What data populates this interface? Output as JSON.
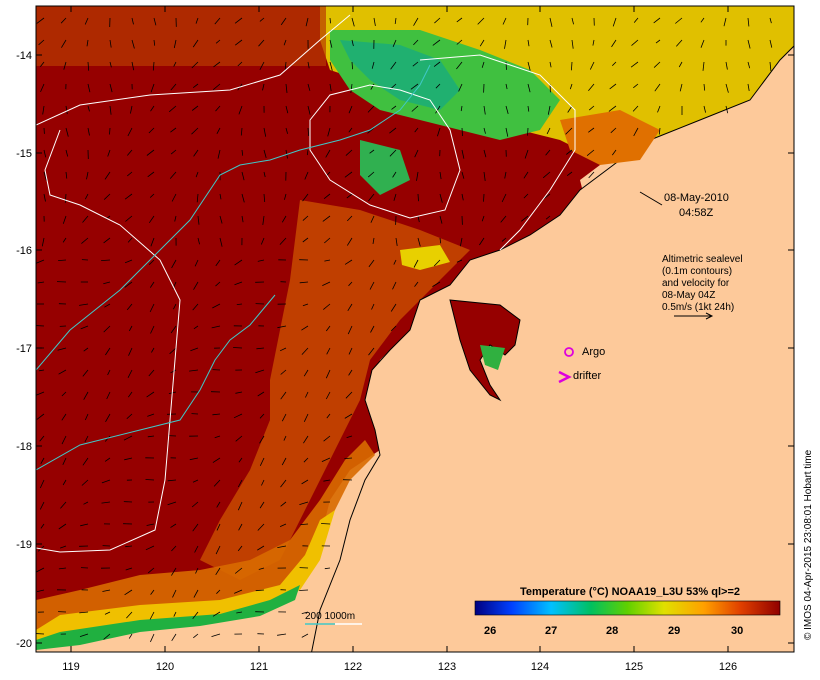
{
  "map": {
    "x_axis_ticks": [
      "119",
      "120",
      "121",
      "122",
      "123",
      "124",
      "125",
      "126"
    ],
    "y_axis_ticks": [
      "-14",
      "-15",
      "-16",
      "-17",
      "-18",
      "-19",
      "-20"
    ],
    "timestamp_date": "08-May-2010",
    "timestamp_time": "04:58Z",
    "legend_lines": [
      "Altimetric sealevel",
      "(0.1m contours)",
      "and velocity for",
      "08-May 04Z",
      "0.5m/s (1kt 24h)"
    ],
    "argo_label": "Argo",
    "drifter_label": "drifter",
    "depth_label": "200  1000m",
    "colorbar_title": "Temperature (°C) NOAA19_L3U 53% ql>=2",
    "colorbar_ticks": [
      "26",
      "27",
      "28",
      "29",
      "30"
    ],
    "credit": "© IMOS 04-Apr-2015 23:08:01 Hobart time",
    "colors": {
      "land": "#fdc99a",
      "warm": "#960000",
      "argo": "#dd00dd",
      "contour_200": "#40c8c8",
      "contour_1000": "#ffffff"
    }
  }
}
